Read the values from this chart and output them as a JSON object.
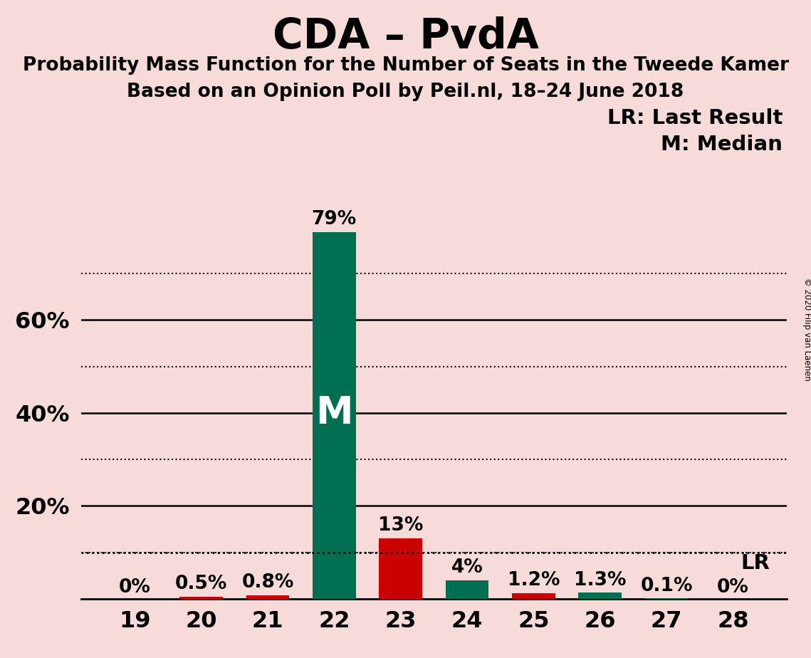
{
  "title": "CDA – PvdA",
  "subtitle1": "Probability Mass Function for the Number of Seats in the Tweede Kamer",
  "subtitle2": "Based on an Opinion Poll by Peil.nl, 18–24 June 2018",
  "copyright": "© 2020 Filip van Laenen",
  "legend_lr": "LR: Last Result",
  "legend_m": "M: Median",
  "seats": [
    19,
    20,
    21,
    22,
    23,
    24,
    25,
    26,
    27,
    28
  ],
  "values": [
    0.0,
    0.5,
    0.8,
    79.0,
    13.0,
    4.0,
    1.2,
    1.3,
    0.1,
    0.0
  ],
  "colors": [
    "#006e51",
    "#cc0000",
    "#cc0000",
    "#006e51",
    "#cc0000",
    "#006e51",
    "#cc0000",
    "#006e51",
    "#006e51",
    "#006e51"
  ],
  "bar_labels": [
    "0%",
    "0.5%",
    "0.8%",
    "79%",
    "13%",
    "4%",
    "1.2%",
    "1.3%",
    "0.1%",
    "0%"
  ],
  "median_seat": 22,
  "lr_value": 10.0,
  "background_color": "#f7dbd9",
  "title_fontsize": 42,
  "subtitle_fontsize": 19,
  "axis_fontsize": 23,
  "bar_label_fontsize": 19,
  "legend_fontsize": 21,
  "ylim": [
    0,
    85
  ],
  "solid_yticks": [
    20,
    40,
    60
  ],
  "dotted_yticks": [
    10,
    30,
    50,
    70
  ]
}
